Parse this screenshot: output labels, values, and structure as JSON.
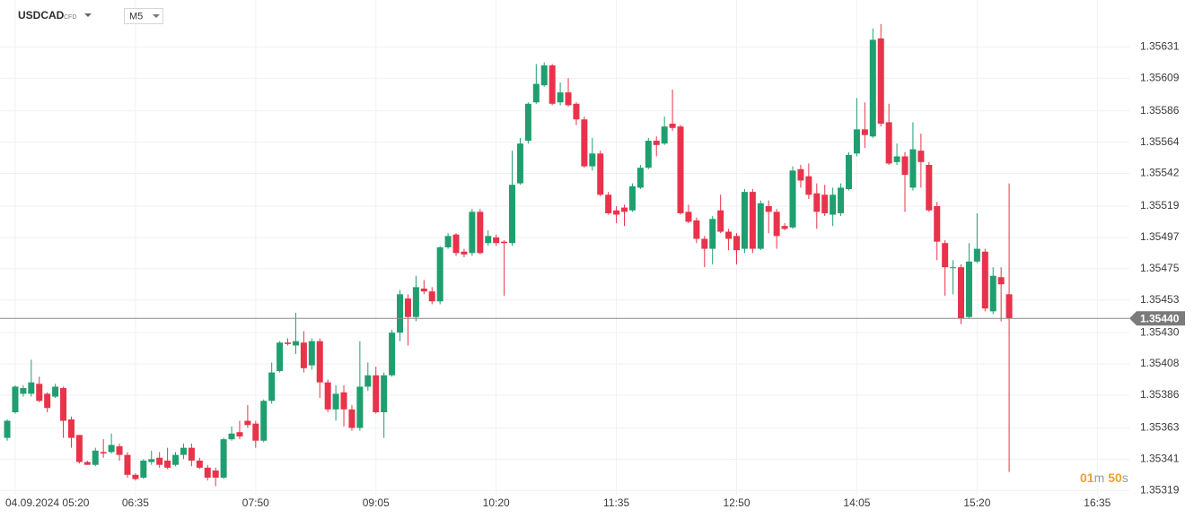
{
  "header": {
    "symbol": "USDCAD",
    "instrument_type": "CFD",
    "timeframe": "M5"
  },
  "countdown": [
    "01",
    "m",
    "50",
    "s"
  ],
  "chart_data": {
    "type": "candlestick",
    "up_color": "#1f9f6f",
    "down_color": "#e8334a",
    "grid": true,
    "xlim": [
      -0.9,
      140
    ],
    "xticks": [
      {
        "value": 1,
        "label": "04.09.2024 05:20"
      },
      {
        "value": 16,
        "label": "06:35"
      },
      {
        "value": 31,
        "label": "07:50"
      },
      {
        "value": 46,
        "label": "09:05"
      },
      {
        "value": 61,
        "label": "10:20"
      },
      {
        "value": 76,
        "label": "11:35"
      },
      {
        "value": 91,
        "label": "12:50"
      },
      {
        "value": 106,
        "label": "14:05"
      },
      {
        "value": 121,
        "label": "15:20"
      },
      {
        "value": 136,
        "label": "16:35"
      }
    ],
    "ylim": [
      1.35316,
      1.35664
    ],
    "yticks": [
      1.35631,
      1.35609,
      1.35586,
      1.35564,
      1.35542,
      1.35519,
      1.35497,
      1.35475,
      1.35453,
      {
        "value": 1.3543,
        "label": "1.35430"
      },
      1.35408,
      1.35386,
      1.35363,
      1.35341,
      1.35319
    ],
    "price": {
      "value": 1.3544,
      "label": "1.35440"
    },
    "open": [
      1.35356,
      1.35374,
      1.35387,
      1.35387,
      1.35394,
      1.35387,
      1.35385,
      1.35391,
      1.35369,
      1.35358,
      1.35339,
      1.35337,
      1.35346,
      1.35346,
      1.3535,
      1.35344,
      1.3533,
      1.35328,
      1.35339,
      1.35342,
      1.3534,
      1.35337,
      1.35344,
      1.35349,
      1.3534,
      1.35335,
      1.35333,
      1.35328,
      1.35355,
      1.3536,
      1.35368,
      1.35366,
      1.35354,
      1.35382,
      1.35403,
      1.35423,
      1.35421,
      1.35423,
      1.35407,
      1.35424,
      1.35395,
      1.35376,
      1.35388,
      1.35376,
      1.35363,
      1.35392,
      1.354,
      1.35374,
      1.354,
      1.3543,
      1.35454,
      1.35441,
      1.35461,
      1.35459,
      1.35452,
      1.3549,
      1.35499,
      1.35487,
      1.35486,
      1.35515,
      1.35493,
      1.35497,
      1.35494,
      1.35493,
      1.35535,
      1.35565,
      1.35592,
      1.35604,
      1.35618,
      1.35592,
      1.35599,
      1.35591,
      1.3558,
      1.35547,
      1.35556,
      1.35527,
      1.35516,
      1.35518,
      1.35516,
      1.35532,
      1.35546,
      1.35565,
      1.35563,
      1.35577,
      1.35575,
      1.35515,
      1.35509,
      1.35496,
      1.35489,
      1.35516,
      1.35501,
      1.35498,
      1.35489,
      1.35529,
      1.35489,
      1.35519,
      1.35515,
      1.35505,
      1.35504,
      1.35545,
      1.3554,
      1.35528,
      1.35527,
      1.35513,
      1.35514,
      1.35531,
      1.35556,
      1.35573,
      1.35568,
      1.35637,
      1.35578,
      1.3555,
      1.35554,
      1.35532,
      1.35558,
      1.35548,
      1.35519,
      1.35493,
      1.35476,
      1.35476,
      1.35441,
      1.3548,
      1.35487,
      1.35445,
      1.35469,
      1.35457
    ],
    "high": [
      1.35369,
      1.35393,
      1.35393,
      1.35411,
      1.35399,
      1.35388,
      1.35394,
      1.35392,
      1.35371,
      1.35358,
      1.3534,
      1.35349,
      1.35355,
      1.35359,
      1.35352,
      1.35346,
      1.35331,
      1.35341,
      1.35347,
      1.35346,
      1.35349,
      1.35346,
      1.35352,
      1.35352,
      1.35342,
      1.35337,
      1.35335,
      1.35356,
      1.35364,
      1.35368,
      1.35379,
      1.35368,
      1.35383,
      1.35409,
      1.35424,
      1.35426,
      1.35444,
      1.35431,
      1.35426,
      1.35426,
      1.35397,
      1.35393,
      1.35393,
      1.35379,
      1.35424,
      1.35409,
      1.35406,
      1.35402,
      1.35432,
      1.3546,
      1.35457,
      1.3547,
      1.35467,
      1.35462,
      1.35491,
      1.355,
      1.355,
      1.35489,
      1.35517,
      1.35517,
      1.35502,
      1.35499,
      1.35495,
      1.35558,
      1.35567,
      1.35592,
      1.35619,
      1.3562,
      1.35619,
      1.35606,
      1.35609,
      1.35592,
      1.35582,
      1.35567,
      1.35558,
      1.35529,
      1.35519,
      1.3552,
      1.35535,
      1.35548,
      1.35567,
      1.35568,
      1.35582,
      1.35601,
      1.35576,
      1.3552,
      1.35511,
      1.35498,
      1.35512,
      1.35527,
      1.35503,
      1.355,
      1.35531,
      1.35531,
      1.35523,
      1.35523,
      1.35517,
      1.35507,
      1.35547,
      1.35548,
      1.35549,
      1.35535,
      1.35534,
      1.35532,
      1.35535,
      1.35557,
      1.35595,
      1.35592,
      1.35644,
      1.35647,
      1.35591,
      1.35563,
      1.35557,
      1.35578,
      1.3557,
      1.3555,
      1.35522,
      1.35495,
      1.35481,
      1.35478,
      1.35493,
      1.35514,
      1.35489,
      1.35476,
      1.35476,
      1.35535
    ],
    "low": [
      1.35354,
      1.35373,
      1.35385,
      1.35385,
      1.35381,
      1.35374,
      1.35384,
      1.35356,
      1.35349,
      1.35338,
      1.35337,
      1.35336,
      1.35342,
      1.35345,
      1.3534,
      1.35328,
      1.35326,
      1.35327,
      1.35337,
      1.35335,
      1.35334,
      1.35336,
      1.35341,
      1.35336,
      1.35334,
      1.35326,
      1.35322,
      1.35327,
      1.35354,
      1.35355,
      1.35363,
      1.35349,
      1.35353,
      1.3538,
      1.35402,
      1.35421,
      1.35415,
      1.35402,
      1.35404,
      1.35384,
      1.35374,
      1.35368,
      1.35364,
      1.35361,
      1.35361,
      1.35389,
      1.35373,
      1.35356,
      1.35399,
      1.35424,
      1.35421,
      1.35438,
      1.35457,
      1.3545,
      1.3545,
      1.35489,
      1.35484,
      1.35483,
      1.35484,
      1.35485,
      1.35491,
      1.35491,
      1.35456,
      1.35491,
      1.35534,
      1.35563,
      1.35591,
      1.35603,
      1.3559,
      1.3559,
      1.35589,
      1.35576,
      1.35546,
      1.35544,
      1.35526,
      1.35513,
      1.35507,
      1.35505,
      1.35515,
      1.35531,
      1.35545,
      1.35554,
      1.35562,
      1.35572,
      1.35513,
      1.35507,
      1.35493,
      1.35476,
      1.35478,
      1.355,
      1.35488,
      1.35478,
      1.35486,
      1.35486,
      1.35488,
      1.355,
      1.35489,
      1.35502,
      1.35503,
      1.35532,
      1.35524,
      1.35503,
      1.35512,
      1.35505,
      1.35512,
      1.3553,
      1.35554,
      1.3556,
      1.35567,
      1.35575,
      1.35548,
      1.35548,
      1.35515,
      1.3553,
      1.35532,
      1.35515,
      1.35481,
      1.35456,
      1.35457,
      1.35436,
      1.3544,
      1.35479,
      1.35445,
      1.35443,
      1.35438,
      1.35332
    ],
    "close": [
      1.35368,
      1.35392,
      1.35391,
      1.35395,
      1.35382,
      1.35377,
      1.35392,
      1.35368,
      1.35356,
      1.35339,
      1.35337,
      1.35347,
      1.35345,
      1.35351,
      1.35344,
      1.3533,
      1.35327,
      1.3534,
      1.35341,
      1.35337,
      1.35335,
      1.35344,
      1.35349,
      1.3534,
      1.35335,
      1.35328,
      1.35328,
      1.35355,
      1.35359,
      1.35357,
      1.35365,
      1.35354,
      1.35382,
      1.35402,
      1.35423,
      1.35422,
      1.35424,
      1.35405,
      1.35424,
      1.35395,
      1.35376,
      1.35387,
      1.35376,
      1.35363,
      1.35392,
      1.354,
      1.35374,
      1.354,
      1.3543,
      1.35457,
      1.35441,
      1.35462,
      1.35459,
      1.35452,
      1.3549,
      1.35498,
      1.35486,
      1.35485,
      1.35515,
      1.35486,
      1.35498,
      1.35493,
      1.35493,
      1.35534,
      1.35563,
      1.35591,
      1.35605,
      1.35618,
      1.35591,
      1.35599,
      1.3559,
      1.3558,
      1.35547,
      1.35556,
      1.35527,
      1.35514,
      1.35513,
      1.35515,
      1.35533,
      1.35546,
      1.35565,
      1.35562,
      1.35575,
      1.35574,
      1.35514,
      1.35508,
      1.35496,
      1.35489,
      1.3551,
      1.35501,
      1.35496,
      1.35488,
      1.35529,
      1.35489,
      1.35521,
      1.35515,
      1.35498,
      1.35503,
      1.35544,
      1.35537,
      1.35527,
      1.35515,
      1.35514,
      1.35527,
      1.35532,
      1.35555,
      1.35573,
      1.35569,
      1.35636,
      1.35577,
      1.35549,
      1.35554,
      1.35541,
      1.35559,
      1.3555,
      1.35516,
      1.35494,
      1.35476,
      1.35476,
      1.3544,
      1.3548,
      1.35489,
      1.35447,
      1.3547,
      1.35464,
      1.3544
    ]
  }
}
